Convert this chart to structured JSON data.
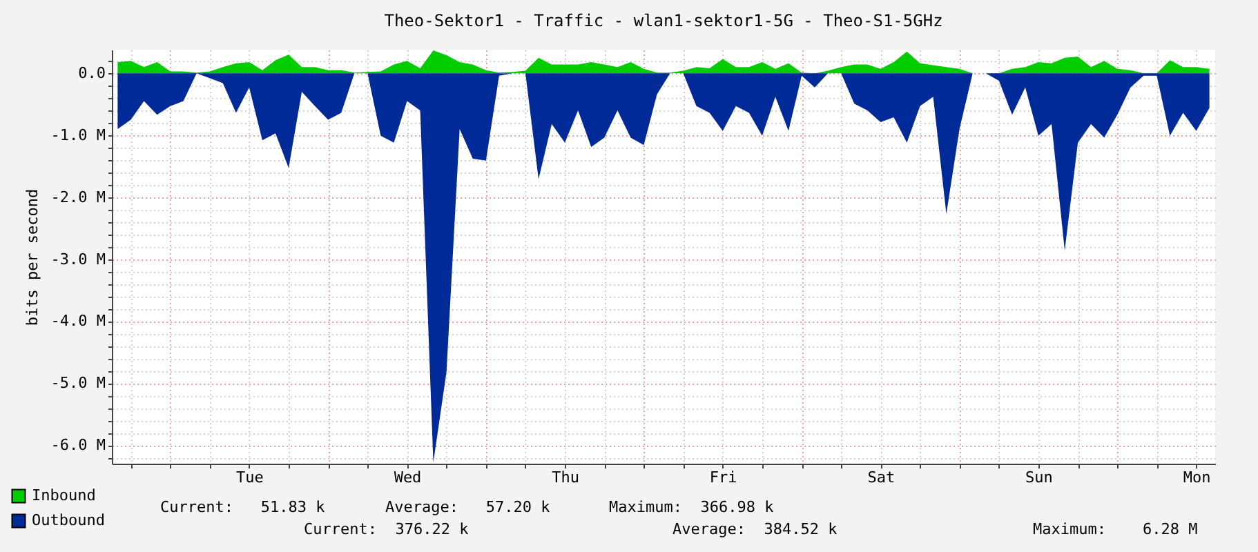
{
  "chart_data": {
    "type": "area",
    "title": "Theo-Sektor1 - Traffic - wlan1-sektor1-5G - Theo-S1-5GHz",
    "ylabel": "bits per second",
    "categories": [
      null,
      null,
      null,
      null,
      null,
      null,
      null,
      null,
      null,
      null,
      "Tue",
      null,
      null,
      null,
      null,
      null,
      null,
      null,
      null,
      null,
      null,
      null,
      "Wed",
      null,
      null,
      null,
      null,
      null,
      null,
      null,
      null,
      null,
      null,
      null,
      "Thu",
      null,
      null,
      null,
      null,
      null,
      null,
      null,
      null,
      null,
      null,
      null,
      "Fri",
      null,
      null,
      null,
      null,
      null,
      null,
      null,
      null,
      null,
      null,
      null,
      "Sat",
      null,
      null,
      null,
      null,
      null,
      null,
      null,
      null,
      null,
      null,
      null,
      "Sun",
      null,
      null,
      null,
      null,
      null,
      null,
      null,
      null,
      null,
      null,
      null,
      "Mon",
      null
    ],
    "ylim": [
      -6.3,
      0.38
    ],
    "yticks": [
      {
        "value": -6.2,
        "label": null
      },
      {
        "value": -6,
        "label": "-6.0 M"
      },
      {
        "value": -5.8,
        "label": null
      },
      {
        "value": -5.6,
        "label": null
      },
      {
        "value": -5.4,
        "label": null
      },
      {
        "value": -5.2,
        "label": null
      },
      {
        "value": -5,
        "label": "-5.0 M"
      },
      {
        "value": -4.8,
        "label": null
      },
      {
        "value": -4.6,
        "label": null
      },
      {
        "value": -4.4,
        "label": null
      },
      {
        "value": -4.2,
        "label": null
      },
      {
        "value": -4,
        "label": "-4.0 M"
      },
      {
        "value": -3.8,
        "label": null
      },
      {
        "value": -3.6,
        "label": null
      },
      {
        "value": -3.4,
        "label": null
      },
      {
        "value": -3.2,
        "label": null
      },
      {
        "value": -3,
        "label": "-3.0 M"
      },
      {
        "value": -2.8,
        "label": null
      },
      {
        "value": -2.6,
        "label": null
      },
      {
        "value": -2.4,
        "label": null
      },
      {
        "value": -2.2,
        "label": null
      },
      {
        "value": -2,
        "label": "-2.0 M"
      },
      {
        "value": -1.8,
        "label": null
      },
      {
        "value": -1.6,
        "label": null
      },
      {
        "value": -1.4,
        "label": null
      },
      {
        "value": -1.2,
        "label": null
      },
      {
        "value": -1,
        "label": "-1.0 M"
      },
      {
        "value": -0.8,
        "label": null
      },
      {
        "value": -0.6,
        "label": null
      },
      {
        "value": -0.4,
        "label": null
      },
      {
        "value": -0.2,
        "label": null
      },
      {
        "value": 0,
        "label": "0.0"
      },
      {
        "value": 0.2,
        "label": null
      }
    ],
    "grid": true,
    "legend": "bottom left",
    "annotations": [
      "Current:   51.83 k",
      "Average:   57.20 k",
      "Maximum:  366.98 k",
      "Current:  376.22 k",
      "Average:  384.52 k",
      "Maximum:    6.28 M"
    ],
    "series": [
      {
        "name": "Inbound",
        "color": "#00cc00",
        "values": [
          0.18,
          0.2,
          0.1,
          0.18,
          0.03,
          0.03,
          0.01,
          0.03,
          0.1,
          0.16,
          0.18,
          0.05,
          0.21,
          0.3,
          0.1,
          0.1,
          0.05,
          0.05,
          0.01,
          0.02,
          0.03,
          0.14,
          0.2,
          0.08,
          0.37,
          0.29,
          0.18,
          0.14,
          0.05,
          0.01,
          0.02,
          0.04,
          0.25,
          0.14,
          0.14,
          0.14,
          0.18,
          0.14,
          0.1,
          0.18,
          0.07,
          0.01,
          0.01,
          0.04,
          0.1,
          0.08,
          0.23,
          0.1,
          0.1,
          0.18,
          0.07,
          0.16,
          0.01,
          0,
          0.04,
          0.1,
          0.14,
          0.14,
          0.07,
          0.18,
          0.35,
          0.16,
          0.13,
          0.1,
          0.07,
          0,
          0,
          0,
          0.07,
          0.1,
          0.18,
          0.16,
          0.25,
          0.27,
          0.1,
          0.2,
          0.07,
          0.05,
          0,
          0,
          0.21,
          0.1,
          0.1,
          0.07
        ]
      },
      {
        "name": "Outbound",
        "color": "#002a97",
        "values": [
          -0.9,
          -0.75,
          -0.45,
          -0.67,
          -0.53,
          -0.45,
          0,
          -0.08,
          -0.16,
          -0.64,
          -0.23,
          -1.08,
          -0.97,
          -1.53,
          -0.3,
          -0.53,
          -0.75,
          -0.64,
          0,
          0,
          -1.01,
          -1.12,
          -0.45,
          -0.6,
          -6.28,
          -4.82,
          -0.9,
          -1.38,
          -1.41,
          -0.04,
          0,
          0,
          -1.71,
          -0.82,
          -1.12,
          -0.6,
          -1.19,
          -1.04,
          -0.6,
          -1.04,
          -1.16,
          -0.34,
          0,
          0,
          -0.53,
          -0.64,
          -0.93,
          -0.53,
          -0.64,
          -1.01,
          -0.38,
          -0.93,
          -0.04,
          -0.23,
          0,
          0,
          -0.49,
          -0.6,
          -0.79,
          -0.71,
          -1.12,
          -0.53,
          -0.38,
          -2.27,
          -0.9,
          0,
          0,
          -0.12,
          -0.67,
          -0.23,
          -1.01,
          -0.82,
          -2.86,
          -1.12,
          -0.82,
          -1.04,
          -0.67,
          -0.23,
          -0.04,
          -0.04,
          -1.01,
          -0.64,
          -0.93,
          -0.56
        ]
      }
    ]
  }
}
